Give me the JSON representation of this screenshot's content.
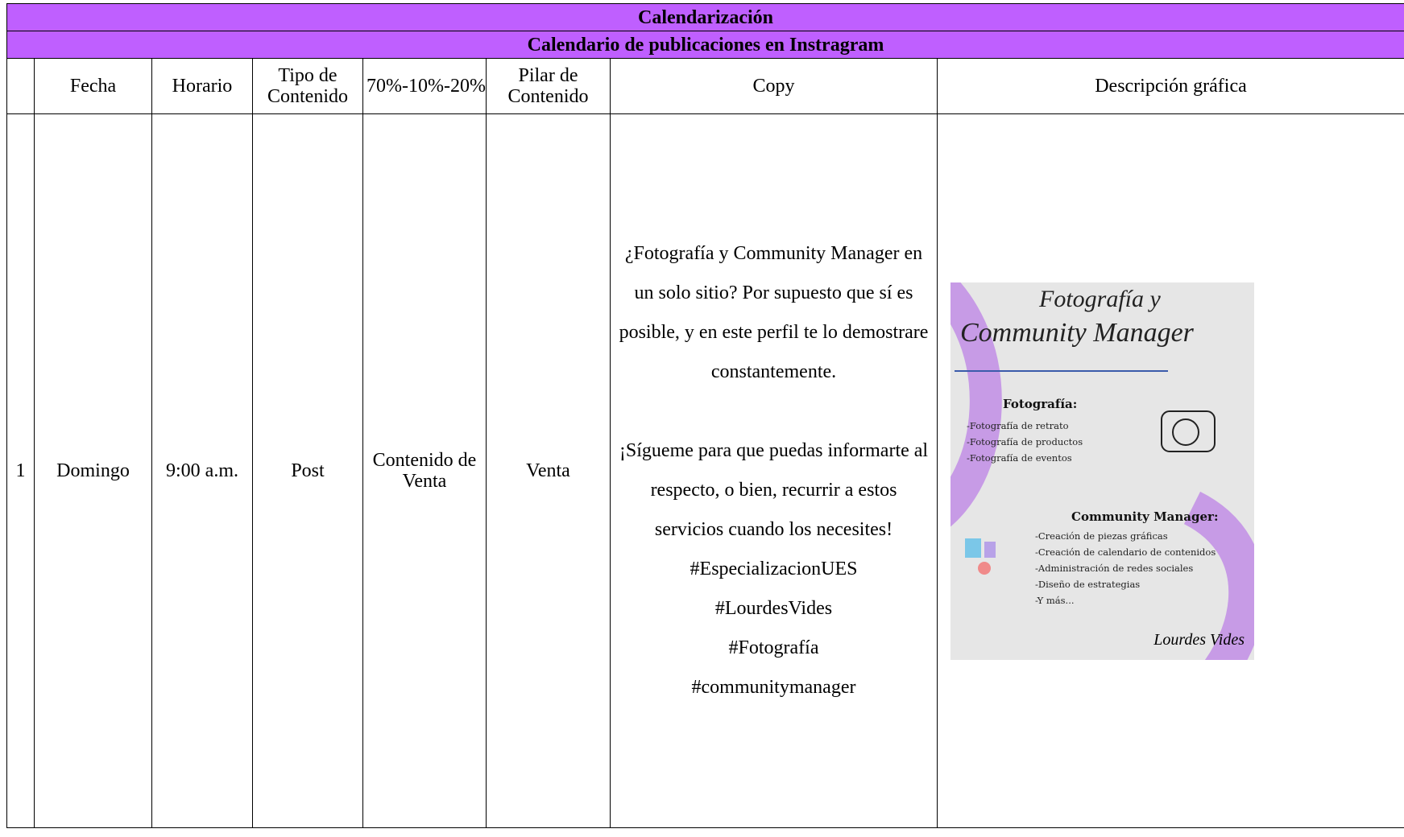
{
  "header": {
    "title": "Calendarización",
    "subtitle": "Calendario de publicaciones en Instragram"
  },
  "table": {
    "columns": [
      "Fecha",
      "Horario",
      "Tipo de Contenido",
      "70%-10%-20%",
      "Pilar de Contenido",
      "Copy",
      "Descripción gráfica"
    ],
    "rows": [
      {
        "number": "1",
        "fecha": "Domingo",
        "horario": "9:00 a.m.",
        "tipo": "Post",
        "porcentaje": "Contenido de Venta",
        "pilar": "Venta",
        "copy": [
          "¿Fotografía y Community Manager en un solo sitio? Por supuesto que sí es posible, y en este perfil te lo demostrare constantemente.",
          "¡Sígueme para que puedas informarte al respecto, o bien, recurrir a estos servicios cuando los necesites!",
          "#EspecializacionUES",
          "#LourdesVides",
          "#Fotografía",
          "#communitymanager"
        ],
        "graphic": {
          "title_line1": "Fotografía y",
          "title_line2": "Community Manager",
          "section1_heading": "Fotografía:",
          "section1_items": [
            "-Fotografía de retrato",
            "-Fotografía de productos",
            "-Fotografía de eventos"
          ],
          "section2_heading": "Community Manager:",
          "section2_items": [
            "-Creación de piezas gráficas",
            "-Creación de calendario de contenidos",
            "-Administración de redes sociales",
            "-Diseño de estrategias",
            "-Y más..."
          ],
          "signature": "Lourdes Vides"
        }
      }
    ]
  }
}
